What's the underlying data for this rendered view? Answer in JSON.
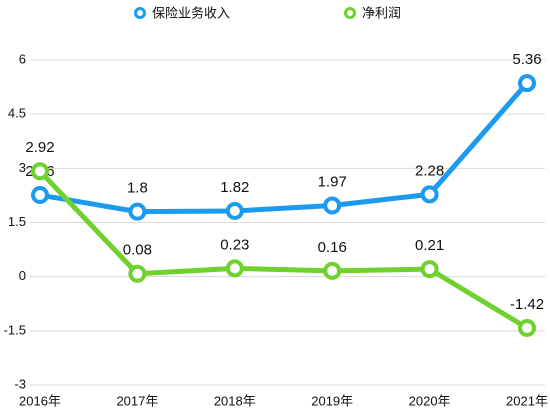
{
  "chart_data": {
    "type": "line",
    "categories": [
      "2016年",
      "2017年",
      "2018年",
      "2019年",
      "2020年",
      "2021年"
    ],
    "series": [
      {
        "name": "保险业务收入",
        "color": "#1a9bf0",
        "values": [
          2.26,
          1.8,
          1.82,
          1.97,
          2.28,
          5.36
        ]
      },
      {
        "name": "净利润",
        "color": "#6fd12e",
        "values": [
          2.92,
          0.08,
          0.23,
          0.16,
          0.21,
          -1.42
        ]
      }
    ],
    "ylim": [
      -3,
      6
    ],
    "yticks": [
      -3,
      -1.5,
      0,
      1.5,
      3,
      4.5,
      6
    ],
    "grid": true
  }
}
